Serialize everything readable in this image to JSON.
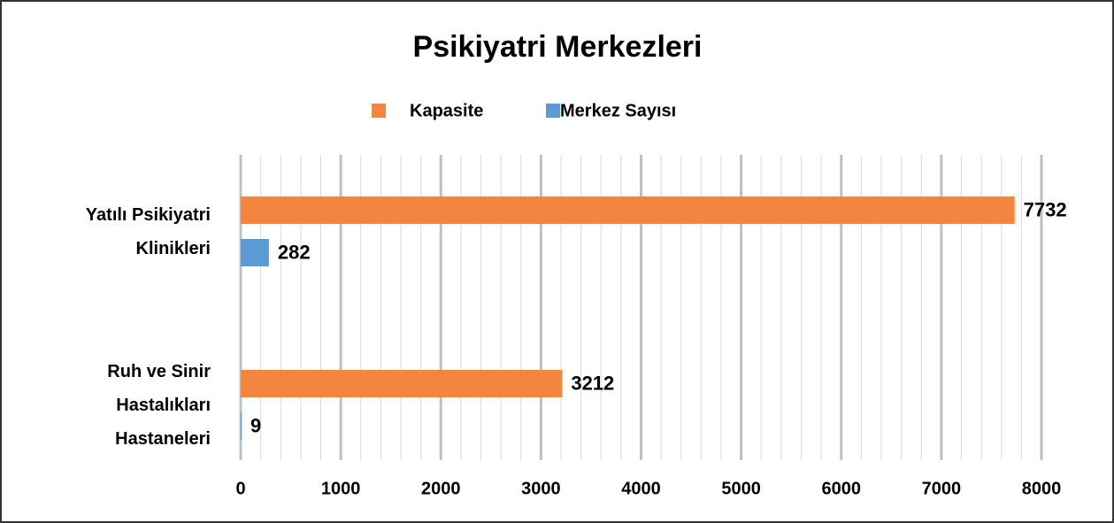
{
  "chart_data": {
    "type": "barh",
    "title": "Psikiyatri Merkezleri",
    "categories": [
      "Yatılı Psikiyatri Klinikleri",
      "Ruh ve Sinir Hastalıkları Hastaneleri"
    ],
    "series": [
      {
        "name": "Kapasite",
        "color": "#f4853f",
        "values": [
          7732,
          3212
        ]
      },
      {
        "name": "Merkez Sayısı",
        "color": "#5b9bd5",
        "values": [
          282,
          9
        ]
      }
    ],
    "xlim": [
      0,
      8000
    ],
    "xticks": [
      0,
      1000,
      2000,
      3000,
      4000,
      5000,
      6000,
      7000,
      8000
    ],
    "minor_xticks": [
      200,
      400,
      600,
      800,
      1200,
      1400,
      1600,
      1800,
      2200,
      2400,
      2600,
      2800,
      3200,
      3400,
      3600,
      3800,
      4200,
      4400,
      4600,
      4800,
      5200,
      5400,
      5600,
      5800,
      6200,
      6400,
      6600,
      6800,
      7200,
      7400,
      7600,
      7800
    ],
    "grid": true,
    "legend": "top"
  }
}
